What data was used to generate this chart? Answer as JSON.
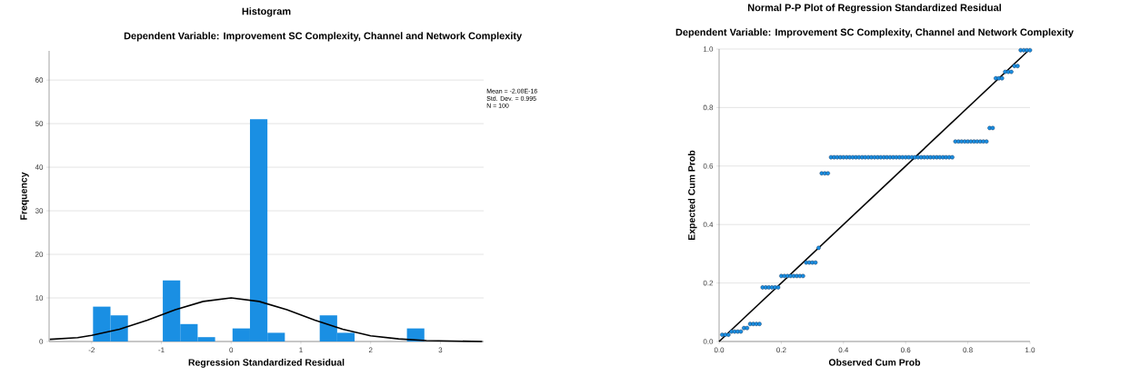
{
  "chart_data": [
    {
      "type": "histogram",
      "title": "Histogram",
      "subtitle": "Dependent Variable: Improvement SC Complexity, Channel and Network Complexity",
      "xlabel": "Regression Standardized Residual",
      "ylabel": "Frequency",
      "bins": [
        -1.98,
        -1.73,
        -1.48,
        -1.23,
        -0.98,
        -0.73,
        -0.48,
        -0.23,
        0.02,
        0.27,
        0.52,
        0.77,
        1.02,
        1.27,
        1.52,
        1.77,
        2.02,
        2.27,
        2.52,
        2.77
      ],
      "values": [
        8,
        6,
        0,
        0,
        14,
        4,
        1,
        0,
        3,
        51,
        2,
        0,
        0,
        6,
        2,
        0,
        0,
        0,
        3
      ],
      "color": "#1a8fe3",
      "series": [
        {
          "type": "line",
          "color": "#000000",
          "x": [
            -2.6,
            -2.2,
            -2.0,
            -1.6,
            -1.2,
            -0.8,
            -0.4,
            0.0,
            0.4,
            0.8,
            1.2,
            1.6,
            2.0,
            2.4,
            2.8,
            3.2,
            3.6
          ],
          "values": [
            0.5,
            0.9,
            1.4,
            2.8,
            4.9,
            7.3,
            9.2,
            10,
            9.2,
            7.3,
            4.9,
            2.8,
            1.3,
            0.6,
            0.2,
            0.1,
            0
          ]
        }
      ],
      "xlim": [
        -2.61,
        3.62
      ],
      "ylim": [
        0,
        66.7
      ],
      "xticks": [
        -2,
        -1,
        0,
        1,
        2,
        3
      ],
      "yticks": [
        0,
        10,
        20,
        30,
        40,
        50,
        60
      ],
      "grid": "y",
      "annotations": [
        "Mean = -2.08E-16",
        "Std. Dev. = 0.995",
        "N = 100"
      ]
    },
    {
      "type": "scatter",
      "title": "Normal P-P Plot of Regression Standardized Residual",
      "subtitle": "Dependent Variable: Improvement SC Complexity, Channel and Network Complexity",
      "xlabel": "Observed Cum Prob",
      "ylabel": "Expected Cum Prob",
      "series": [
        {
          "type": "scatter",
          "color": "#1a8fe3",
          "marker": "circle",
          "x": [
            0.01,
            0.02,
            0.03,
            0.04,
            0.05,
            0.06,
            0.07,
            0.08,
            0.09,
            0.1,
            0.11,
            0.12,
            0.13,
            0.14,
            0.15,
            0.16,
            0.17,
            0.18,
            0.19,
            0.2,
            0.21,
            0.22,
            0.23,
            0.24,
            0.25,
            0.26,
            0.27,
            0.28,
            0.29,
            0.3,
            0.31,
            0.32,
            0.33,
            0.34,
            0.35,
            0.36,
            0.37,
            0.38,
            0.39,
            0.4,
            0.41,
            0.42,
            0.43,
            0.44,
            0.45,
            0.46,
            0.47,
            0.48,
            0.49,
            0.5,
            0.51,
            0.52,
            0.53,
            0.54,
            0.55,
            0.56,
            0.57,
            0.58,
            0.59,
            0.6,
            0.61,
            0.62,
            0.63,
            0.64,
            0.65,
            0.66,
            0.67,
            0.68,
            0.69,
            0.7,
            0.71,
            0.72,
            0.73,
            0.74,
            0.75,
            0.76,
            0.77,
            0.78,
            0.79,
            0.8,
            0.81,
            0.82,
            0.83,
            0.84,
            0.85,
            0.86,
            0.87,
            0.88,
            0.89,
            0.9,
            0.91,
            0.92,
            0.93,
            0.94,
            0.95,
            0.96,
            0.97,
            0.98,
            0.99,
            1.0
          ],
          "values": [
            0.023,
            0.023,
            0.023,
            0.034,
            0.034,
            0.034,
            0.034,
            0.046,
            0.046,
            0.06,
            0.06,
            0.06,
            0.06,
            0.185,
            0.185,
            0.185,
            0.185,
            0.185,
            0.185,
            0.224,
            0.224,
            0.224,
            0.224,
            0.224,
            0.224,
            0.224,
            0.224,
            0.27,
            0.27,
            0.27,
            0.27,
            0.32,
            0.575,
            0.575,
            0.575,
            0.63,
            0.63,
            0.63,
            0.63,
            0.63,
            0.63,
            0.63,
            0.63,
            0.63,
            0.63,
            0.63,
            0.63,
            0.63,
            0.63,
            0.63,
            0.63,
            0.63,
            0.63,
            0.63,
            0.63,
            0.63,
            0.63,
            0.63,
            0.63,
            0.63,
            0.63,
            0.63,
            0.63,
            0.63,
            0.63,
            0.63,
            0.63,
            0.63,
            0.63,
            0.63,
            0.63,
            0.63,
            0.63,
            0.63,
            0.63,
            0.684,
            0.684,
            0.684,
            0.684,
            0.684,
            0.684,
            0.684,
            0.684,
            0.684,
            0.684,
            0.684,
            0.73,
            0.73,
            0.9,
            0.9,
            0.9,
            0.922,
            0.922,
            0.922,
            0.942,
            0.942,
            0.996,
            0.996,
            0.996,
            0.996
          ]
        },
        {
          "type": "line",
          "color": "#000000",
          "x": [
            0,
            1
          ],
          "values": [
            0,
            1
          ]
        }
      ],
      "xlim": [
        0,
        1
      ],
      "ylim": [
        0,
        1
      ],
      "xticks": [
        {
          "value": 0,
          "label": "0.0"
        },
        0.2,
        0.4,
        0.6,
        0.8,
        {
          "value": 1,
          "label": "1.0"
        }
      ],
      "yticks": [
        {
          "value": 0,
          "label": "0.0"
        },
        0.2,
        0.4,
        0.6,
        0.8,
        {
          "value": 1,
          "label": "1.0"
        }
      ],
      "grid": "y"
    }
  ]
}
